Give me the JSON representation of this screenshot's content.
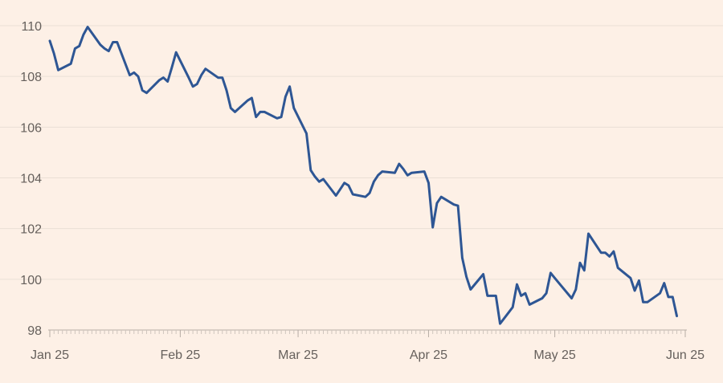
{
  "chart_data": {
    "type": "line",
    "title": "",
    "xlabel": "",
    "ylabel": "",
    "x_range": [
      "2025-01-01",
      "2025-06-01"
    ],
    "ylim": [
      98,
      110
    ],
    "yticks": [
      98,
      100,
      102,
      104,
      106,
      108,
      110
    ],
    "xticks": [
      {
        "date": "2025-01-01",
        "label": "Jan 25"
      },
      {
        "date": "2025-02-01",
        "label": "Feb 25"
      },
      {
        "date": "2025-03-01",
        "label": "Mar 25"
      },
      {
        "date": "2025-04-01",
        "label": "Apr 25"
      },
      {
        "date": "2025-05-01",
        "label": "May 25"
      },
      {
        "date": "2025-06-01",
        "label": "Jun 25"
      }
    ],
    "grid": true,
    "colors": {
      "background": "#fdf0e6",
      "line": "#2e5694",
      "grid": "#eadfd6"
    },
    "series": [
      {
        "x": [
          "2025-01-01",
          "2025-01-02",
          "2025-01-03",
          "2025-01-06",
          "2025-01-07",
          "2025-01-08",
          "2025-01-09",
          "2025-01-10",
          "2025-01-13",
          "2025-01-14",
          "2025-01-15",
          "2025-01-16",
          "2025-01-17",
          "2025-01-20",
          "2025-01-21",
          "2025-01-22",
          "2025-01-23",
          "2025-01-24",
          "2025-01-27",
          "2025-01-28",
          "2025-01-29",
          "2025-01-30",
          "2025-01-31",
          "2025-02-03",
          "2025-02-04",
          "2025-02-05",
          "2025-02-06",
          "2025-02-07",
          "2025-02-10",
          "2025-02-11",
          "2025-02-12",
          "2025-02-13",
          "2025-02-14",
          "2025-02-17",
          "2025-02-18",
          "2025-02-19",
          "2025-02-20",
          "2025-02-21",
          "2025-02-24",
          "2025-02-25",
          "2025-02-26",
          "2025-02-27",
          "2025-02-28",
          "2025-03-03",
          "2025-03-04",
          "2025-03-05",
          "2025-03-06",
          "2025-03-07",
          "2025-03-10",
          "2025-03-11",
          "2025-03-12",
          "2025-03-13",
          "2025-03-14",
          "2025-03-17",
          "2025-03-18",
          "2025-03-19",
          "2025-03-20",
          "2025-03-21",
          "2025-03-24",
          "2025-03-25",
          "2025-03-26",
          "2025-03-27",
          "2025-03-28",
          "2025-03-31",
          "2025-04-01",
          "2025-04-02",
          "2025-04-03",
          "2025-04-04",
          "2025-04-07",
          "2025-04-08",
          "2025-04-09",
          "2025-04-10",
          "2025-04-11",
          "2025-04-14",
          "2025-04-15",
          "2025-04-16",
          "2025-04-17",
          "2025-04-18",
          "2025-04-21",
          "2025-04-22",
          "2025-04-23",
          "2025-04-24",
          "2025-04-25",
          "2025-04-28",
          "2025-04-29",
          "2025-04-30",
          "2025-05-01",
          "2025-05-02",
          "2025-05-05",
          "2025-05-06",
          "2025-05-07",
          "2025-05-08",
          "2025-05-09",
          "2025-05-12",
          "2025-05-13",
          "2025-05-14",
          "2025-05-15",
          "2025-05-16",
          "2025-05-19",
          "2025-05-20",
          "2025-05-21",
          "2025-05-22",
          "2025-05-23",
          "2025-05-26",
          "2025-05-27",
          "2025-05-28",
          "2025-05-29",
          "2025-05-30"
        ],
        "y": [
          109.4,
          108.9,
          108.25,
          108.5,
          109.1,
          109.2,
          109.65,
          109.95,
          109.25,
          109.1,
          109.0,
          109.35,
          109.35,
          108.05,
          108.15,
          108.0,
          107.45,
          107.35,
          107.85,
          107.95,
          107.8,
          108.35,
          108.95,
          107.95,
          107.6,
          107.7,
          108.05,
          108.3,
          107.95,
          107.95,
          107.45,
          106.75,
          106.6,
          107.05,
          107.15,
          106.4,
          106.6,
          106.6,
          106.35,
          106.4,
          107.2,
          107.6,
          106.75,
          105.75,
          104.3,
          104.05,
          103.85,
          103.95,
          103.3,
          103.55,
          103.8,
          103.7,
          103.35,
          103.25,
          103.4,
          103.85,
          104.1,
          104.25,
          104.2,
          104.55,
          104.35,
          104.1,
          104.2,
          104.25,
          103.8,
          102.05,
          103.0,
          103.25,
          102.95,
          102.9,
          100.85,
          100.1,
          99.6,
          100.2,
          99.35,
          99.35,
          99.35,
          98.25,
          98.9,
          99.8,
          99.35,
          99.45,
          99.0,
          99.25,
          99.45,
          100.25,
          100.05,
          99.85,
          99.25,
          99.6,
          100.65,
          100.35,
          101.8,
          101.05,
          101.05,
          100.9,
          101.1,
          100.45,
          100.05,
          99.55,
          99.95,
          99.1,
          99.1,
          99.45,
          99.85,
          99.3,
          99.3,
          98.55
        ]
      }
    ]
  }
}
